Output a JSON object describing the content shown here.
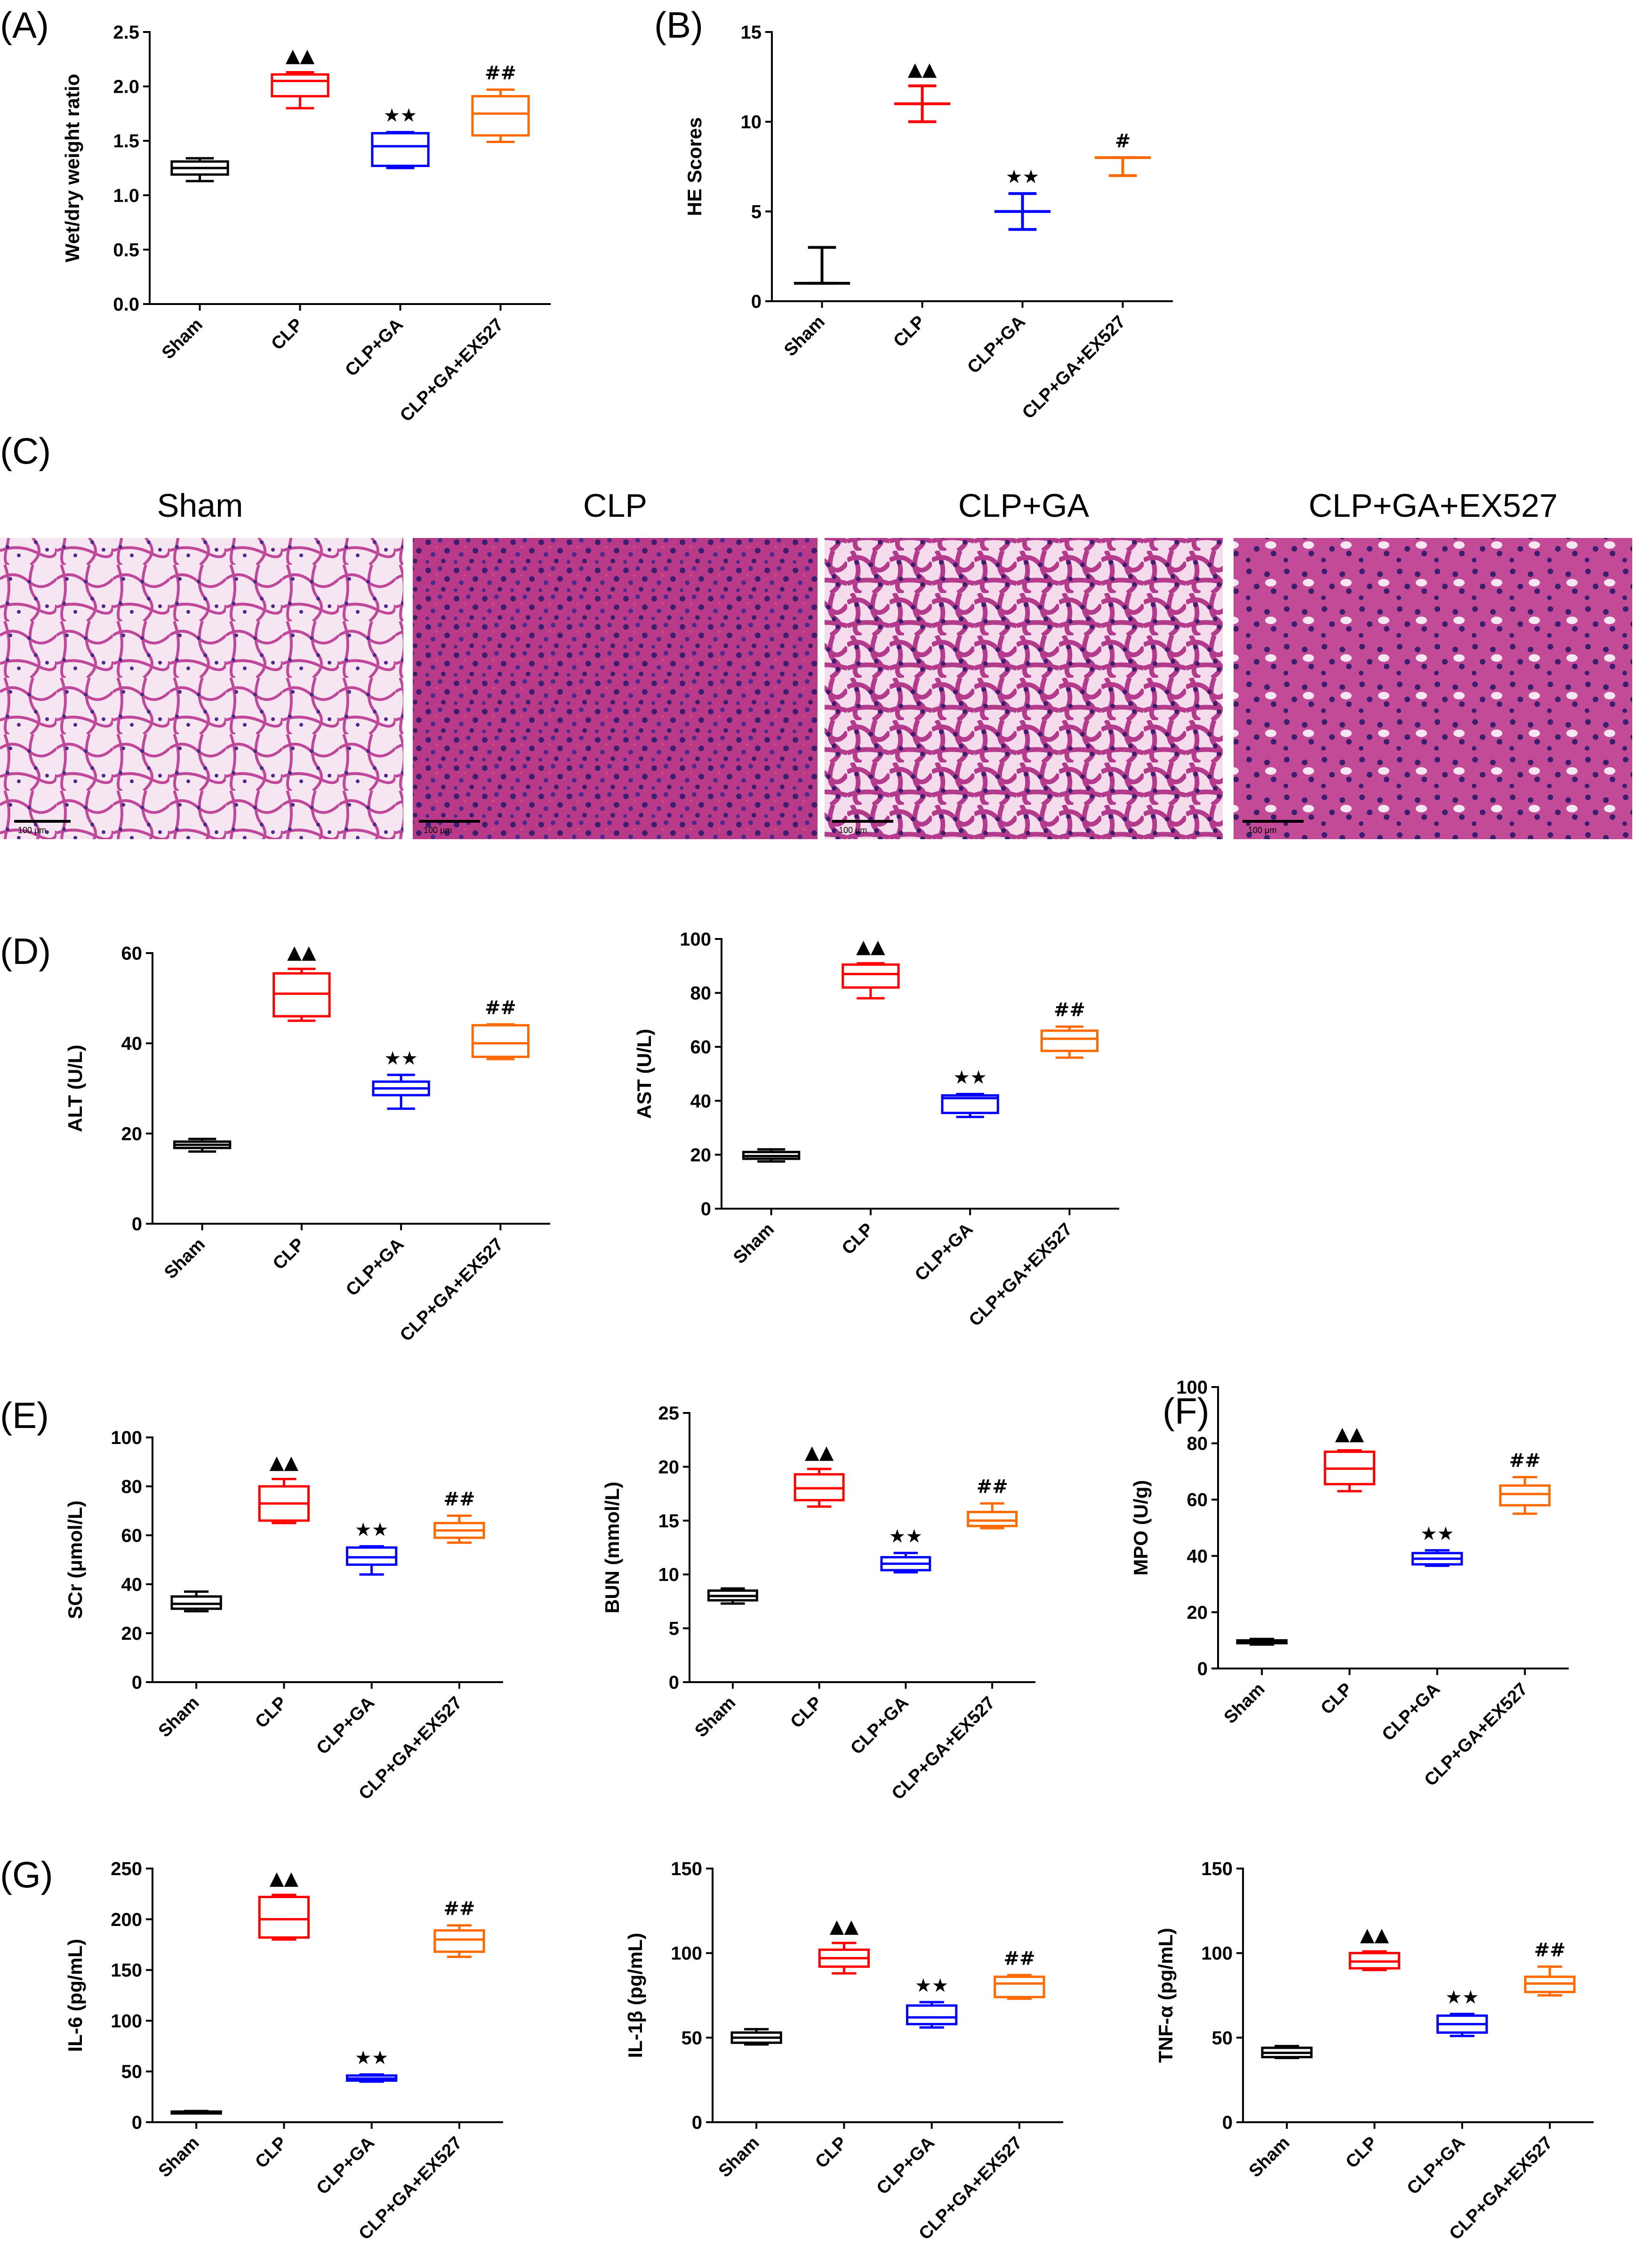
{
  "colors": {
    "Sham": "#000000",
    "CLP": "#ff0000",
    "CLP+GA": "#0000ff",
    "CLP+GA+EX527": "#ff6a00"
  },
  "groups": [
    "Sham",
    "CLP",
    "CLP+GA",
    "CLP+GA+EX527"
  ],
  "micrographs": {
    "label": "(C)",
    "titles": [
      "Sham",
      "CLP",
      "CLP+GA",
      "CLP+GA+EX527"
    ],
    "scale_bar": "100 μm"
  },
  "chart_data": [
    {
      "id": "A",
      "label": "(A)",
      "type": "box",
      "ylabel": "Wet/dry weight ratio",
      "ylim": [
        0,
        2.5
      ],
      "yticks": [
        "0.0",
        "0.5",
        "1.0",
        "1.5",
        "2.0",
        "2.5"
      ],
      "categories": [
        "Sham",
        "CLP",
        "CLP+GA",
        "CLP+GA+EX527"
      ],
      "boxes": [
        {
          "min": 1.13,
          "q1": 1.19,
          "median": 1.25,
          "q3": 1.31,
          "max": 1.34
        },
        {
          "min": 1.8,
          "q1": 1.91,
          "median": 2.05,
          "q3": 2.11,
          "max": 2.13
        },
        {
          "min": 1.25,
          "q1": 1.27,
          "median": 1.45,
          "q3": 1.57,
          "max": 1.58
        },
        {
          "min": 1.49,
          "q1": 1.55,
          "median": 1.75,
          "q3": 1.91,
          "max": 1.97
        }
      ],
      "annotations": [
        "",
        "▲▲",
        "★★",
        "##"
      ]
    },
    {
      "id": "B",
      "label": "(B)",
      "type": "median_range",
      "ylabel": "HE Scores",
      "ylim": [
        0,
        15
      ],
      "yticks": [
        "0",
        "5",
        "10",
        "15"
      ],
      "categories": [
        "Sham",
        "CLP",
        "CLP+GA",
        "CLP+GA+EX527"
      ],
      "points": [
        {
          "median": 1,
          "low": 1,
          "high": 3
        },
        {
          "median": 11,
          "low": 10,
          "high": 12
        },
        {
          "median": 5,
          "low": 4,
          "high": 6
        },
        {
          "median": 8,
          "low": 7,
          "high": 8
        }
      ],
      "annotations": [
        "",
        "▲▲",
        "★★",
        "#"
      ]
    },
    {
      "id": "D1",
      "label": "(D)",
      "type": "box",
      "ylabel": "ALT (U/L)",
      "ylim": [
        0,
        60
      ],
      "yticks": [
        "0",
        "20",
        "40",
        "60"
      ],
      "categories": [
        "Sham",
        "CLP",
        "CLP+GA",
        "CLP+GA+EX527"
      ],
      "boxes": [
        {
          "min": 16.0,
          "q1": 16.8,
          "median": 17.5,
          "q3": 18.2,
          "max": 18.8
        },
        {
          "min": 45.0,
          "q1": 46.0,
          "median": 51.0,
          "q3": 55.5,
          "max": 56.5
        },
        {
          "min": 25.5,
          "q1": 28.5,
          "median": 30.0,
          "q3": 31.5,
          "max": 33.0
        },
        {
          "min": 36.5,
          "q1": 37.0,
          "median": 40.0,
          "q3": 44.0,
          "max": 44.2
        }
      ],
      "annotations": [
        "",
        "▲▲",
        "★★",
        "##"
      ]
    },
    {
      "id": "D2",
      "label": "",
      "type": "box",
      "ylabel": "AST (U/L)",
      "ylim": [
        0,
        100
      ],
      "yticks": [
        "0",
        "20",
        "40",
        "60",
        "80",
        "100"
      ],
      "categories": [
        "Sham",
        "CLP",
        "CLP+GA",
        "CLP+GA+EX527"
      ],
      "boxes": [
        {
          "min": 17.5,
          "q1": 18.5,
          "median": 19.5,
          "q3": 21.0,
          "max": 22.0
        },
        {
          "min": 78.0,
          "q1": 82.0,
          "median": 87.0,
          "q3": 90.5,
          "max": 91.0
        },
        {
          "min": 34.0,
          "q1": 35.5,
          "median": 41.0,
          "q3": 42.0,
          "max": 42.5
        },
        {
          "min": 56.0,
          "q1": 58.5,
          "median": 63.0,
          "q3": 66.0,
          "max": 67.5
        }
      ],
      "annotations": [
        "",
        "▲▲",
        "★★",
        "##"
      ]
    },
    {
      "id": "E1",
      "label": "(E)",
      "type": "box",
      "ylabel": "SCr (μmol/L)",
      "ylim": [
        0,
        100
      ],
      "yticks": [
        "0",
        "20",
        "40",
        "60",
        "80",
        "100"
      ],
      "categories": [
        "Sham",
        "CLP",
        "CLP+GA",
        "CLP+GA+EX527"
      ],
      "boxes": [
        {
          "min": 29.0,
          "q1": 30.0,
          "median": 32.0,
          "q3": 35.0,
          "max": 37.0
        },
        {
          "min": 65.0,
          "q1": 66.0,
          "median": 73.0,
          "q3": 80.0,
          "max": 83.0
        },
        {
          "min": 44.0,
          "q1": 48.0,
          "median": 51.0,
          "q3": 55.0,
          "max": 55.5
        },
        {
          "min": 57.0,
          "q1": 59.0,
          "median": 62.0,
          "q3": 65.0,
          "max": 68.0
        }
      ],
      "annotations": [
        "",
        "▲▲",
        "★★",
        "##"
      ]
    },
    {
      "id": "E2",
      "label": "",
      "type": "box",
      "ylabel": "BUN (mmol/L)",
      "ylim": [
        0,
        25
      ],
      "yticks": [
        "0",
        "5",
        "10",
        "15",
        "20",
        "25"
      ],
      "categories": [
        "Sham",
        "CLP",
        "CLP+GA",
        "CLP+GA+EX527"
      ],
      "boxes": [
        {
          "min": 7.3,
          "q1": 7.6,
          "median": 8.0,
          "q3": 8.5,
          "max": 8.7
        },
        {
          "min": 16.3,
          "q1": 16.9,
          "median": 18.0,
          "q3": 19.3,
          "max": 19.8
        },
        {
          "min": 10.2,
          "q1": 10.4,
          "median": 11.0,
          "q3": 11.6,
          "max": 12.0
        },
        {
          "min": 14.3,
          "q1": 14.5,
          "median": 15.0,
          "q3": 15.8,
          "max": 16.6
        }
      ],
      "annotations": [
        "",
        "▲▲",
        "★★",
        "##"
      ]
    },
    {
      "id": "F",
      "label": "(F)",
      "type": "box",
      "ylabel": "MPO (U/g)",
      "ylim": [
        0,
        100
      ],
      "yticks": [
        "0",
        "20",
        "40",
        "60",
        "80",
        "100"
      ],
      "categories": [
        "Sham",
        "CLP",
        "CLP+GA",
        "CLP+GA+EX527"
      ],
      "boxes": [
        {
          "min": 8.5,
          "q1": 9.0,
          "median": 9.5,
          "q3": 10.0,
          "max": 10.5
        },
        {
          "min": 63.0,
          "q1": 65.5,
          "median": 71.0,
          "q3": 77.0,
          "max": 77.5
        },
        {
          "min": 36.5,
          "q1": 37.0,
          "median": 39.0,
          "q3": 41.0,
          "max": 42.0
        },
        {
          "min": 55.0,
          "q1": 58.0,
          "median": 62.0,
          "q3": 65.0,
          "max": 68.0
        }
      ],
      "annotations": [
        "",
        "▲▲",
        "★★",
        "##"
      ]
    },
    {
      "id": "G1",
      "label": "(G)",
      "type": "box",
      "ylabel": "IL-6 (pg/mL)",
      "ylim": [
        0,
        250
      ],
      "yticks": [
        "0",
        "50",
        "100",
        "150",
        "200",
        "250"
      ],
      "categories": [
        "Sham",
        "CLP",
        "CLP+GA",
        "CLP+GA+EX527"
      ],
      "boxes": [
        {
          "min": 9.0,
          "q1": 9.5,
          "median": 10.0,
          "q3": 10.5,
          "max": 11.0
        },
        {
          "min": 180.0,
          "q1": 182.0,
          "median": 200.0,
          "q3": 222.0,
          "max": 224.0
        },
        {
          "min": 40.0,
          "q1": 41.0,
          "median": 43.0,
          "q3": 46.0,
          "max": 47.0
        },
        {
          "min": 163.0,
          "q1": 168.0,
          "median": 180.0,
          "q3": 189.0,
          "max": 194.0
        }
      ],
      "annotations": [
        "",
        "▲▲",
        "★★",
        "##"
      ]
    },
    {
      "id": "G2",
      "label": "",
      "type": "box",
      "ylabel": "IL-1β (pg/mL)",
      "ylim": [
        0,
        150
      ],
      "yticks": [
        "0",
        "50",
        "100",
        "150"
      ],
      "categories": [
        "Sham",
        "CLP",
        "CLP+GA",
        "CLP+GA+EX527"
      ],
      "boxes": [
        {
          "min": 46.0,
          "q1": 47.0,
          "median": 50.0,
          "q3": 53.0,
          "max": 55.0
        },
        {
          "min": 88.0,
          "q1": 92.0,
          "median": 97.0,
          "q3": 102.0,
          "max": 106.0
        },
        {
          "min": 56.0,
          "q1": 58.0,
          "median": 62.0,
          "q3": 69.0,
          "max": 71.0
        },
        {
          "min": 73.0,
          "q1": 74.0,
          "median": 82.0,
          "q3": 86.0,
          "max": 87.0
        }
      ],
      "annotations": [
        "",
        "▲▲",
        "★★",
        "##"
      ]
    },
    {
      "id": "G3",
      "label": "",
      "type": "box",
      "ylabel": "TNF-α (pg/mL)",
      "ylim": [
        0,
        150
      ],
      "yticks": [
        "0",
        "50",
        "100",
        "150"
      ],
      "categories": [
        "Sham",
        "CLP",
        "CLP+GA",
        "CLP+GA+EX527"
      ],
      "boxes": [
        {
          "min": 38.0,
          "q1": 38.5,
          "median": 41.0,
          "q3": 44.0,
          "max": 45.0
        },
        {
          "min": 90.0,
          "q1": 91.0,
          "median": 95.0,
          "q3": 100.0,
          "max": 101.0
        },
        {
          "min": 51.0,
          "q1": 53.0,
          "median": 58.0,
          "q3": 63.0,
          "max": 64.0
        },
        {
          "min": 75.0,
          "q1": 77.0,
          "median": 82.0,
          "q3": 86.0,
          "max": 92.0
        }
      ],
      "annotations": [
        "",
        "▲▲",
        "★★",
        "##"
      ]
    }
  ]
}
